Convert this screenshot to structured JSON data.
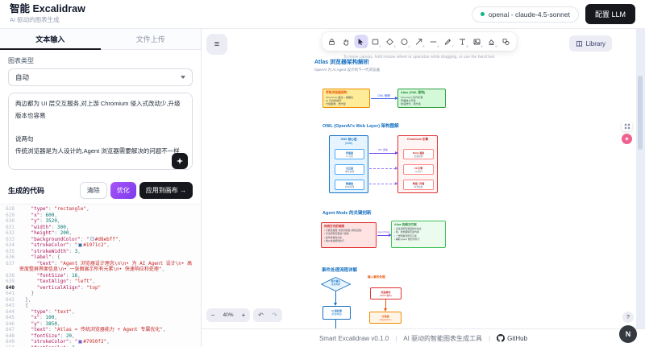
{
  "header": {
    "title": "智能 Excalidraw",
    "subtitle": "AI 驱动的图表生成",
    "model_badge": "openai - claude-4.5-sonnet",
    "config_button": "配置 LLM"
  },
  "sidebar": {
    "tabs": {
      "text_input": "文本输入",
      "file_upload": "文件上传"
    },
    "chart_type_label": "图表类型",
    "chart_type_value": "自动",
    "input_text": "两边都为 UI 层交互服务,对上游 Chromium 侵入式改动少,升级版本也容易\n\n说两句\n传统浏览器是为人设计的,Agent 浏览器需要解决的问题不一样\n\n人类靠各种交互,进行辅助认知,可以忍受逐步单击浏览\n\nAI 则不同,需要在一张图里看到所有元素,需要快速响应\n\n新的浏览器架构,很有必要",
    "generated_code_label": "生成的代码",
    "buttons": {
      "clear": "清除",
      "optimize": "优化",
      "apply": "应用到画布 →"
    }
  },
  "code": {
    "lines": [
      {
        "n": 640,
        "active": true
      },
      {
        "n": 0
      }
    ],
    "rows": [
      {
        "n": "628",
        "parts": [
          [
            "p",
            "    "
          ],
          [
            "k",
            "\"type\""
          ],
          [
            "p",
            ": "
          ],
          [
            "s",
            "\"rectangle\""
          ],
          [
            "p",
            ","
          ]
        ]
      },
      {
        "n": "629",
        "parts": [
          [
            "p",
            "    "
          ],
          [
            "k",
            "\"x\""
          ],
          [
            "p",
            ": "
          ],
          [
            "m",
            "600"
          ],
          [
            "p",
            ","
          ]
        ]
      },
      {
        "n": "630",
        "parts": [
          [
            "p",
            "    "
          ],
          [
            "k",
            "\"y\""
          ],
          [
            "p",
            ": "
          ],
          [
            "m",
            "3520"
          ],
          [
            "p",
            ","
          ]
        ]
      },
      {
        "n": "631",
        "parts": [
          [
            "p",
            "    "
          ],
          [
            "k",
            "\"width\""
          ],
          [
            "p",
            ": "
          ],
          [
            "m",
            "300"
          ],
          [
            "p",
            ","
          ]
        ]
      },
      {
        "n": "632",
        "parts": [
          [
            "p",
            "    "
          ],
          [
            "k",
            "\"height\""
          ],
          [
            "p",
            ": "
          ],
          [
            "m",
            "200"
          ],
          [
            "p",
            ","
          ]
        ]
      },
      {
        "n": "633",
        "parts": [
          [
            "p",
            "    "
          ],
          [
            "k",
            "\"backgroundColor\""
          ],
          [
            "p",
            ": "
          ],
          [
            "s",
            "\""
          ],
          [
            "w",
            "#d8ebff"
          ],
          [
            "s",
            "#d8ebff\""
          ],
          [
            "p",
            ","
          ]
        ]
      },
      {
        "n": "634",
        "parts": [
          [
            "p",
            "    "
          ],
          [
            "k",
            "\"strokeColor\""
          ],
          [
            "p",
            ": "
          ],
          [
            "s",
            "\""
          ],
          [
            "w",
            "#1971c2"
          ],
          [
            "s",
            "#1971c2\""
          ],
          [
            "p",
            ","
          ]
        ]
      },
      {
        "n": "635",
        "parts": [
          [
            "p",
            "    "
          ],
          [
            "k",
            "\"strokeWidth\""
          ],
          [
            "p",
            ": "
          ],
          [
            "m",
            "3"
          ],
          [
            "p",
            ","
          ]
        ]
      },
      {
        "n": "636",
        "parts": [
          [
            "p",
            "    "
          ],
          [
            "k",
            "\"label\""
          ],
          [
            "p",
            ": {"
          ]
        ]
      },
      {
        "n": "637",
        "parts": [
          [
            "p",
            "      "
          ],
          [
            "k",
            "\"text\""
          ],
          [
            "p",
            ": "
          ],
          [
            "s",
            "\"Agent 浏览器设计理念\\n\\n• 为 AI Agent 设计\\n• 高密度整屏界面信息\\n• 一张图展示所有元素\\n• 快速响应和处理\""
          ],
          [
            "p",
            ","
          ]
        ]
      },
      {
        "n": "638",
        "parts": [
          [
            "p",
            "      "
          ],
          [
            "k",
            "\"fontSize\""
          ],
          [
            "p",
            ": "
          ],
          [
            "m",
            "16"
          ],
          [
            "p",
            ","
          ]
        ]
      },
      {
        "n": "639",
        "parts": [
          [
            "p",
            "      "
          ],
          [
            "k",
            "\"textAlign\""
          ],
          [
            "p",
            ": "
          ],
          [
            "s",
            "\"left\""
          ],
          [
            "p",
            ","
          ]
        ]
      },
      {
        "n": "640",
        "active": true,
        "parts": [
          [
            "p",
            "      "
          ],
          [
            "k",
            "\"verticalAlign\""
          ],
          [
            "p",
            ": "
          ],
          [
            "s",
            "\"top\""
          ]
        ]
      },
      {
        "n": "641",
        "parts": [
          [
            "p",
            "    }"
          ]
        ]
      },
      {
        "n": "642",
        "parts": [
          [
            "p",
            "  },"
          ]
        ]
      },
      {
        "n": "643",
        "parts": [
          [
            "p",
            "  {"
          ]
        ]
      },
      {
        "n": "644",
        "parts": [
          [
            "p",
            "    "
          ],
          [
            "k",
            "\"type\""
          ],
          [
            "p",
            ": "
          ],
          [
            "s",
            "\"text\""
          ],
          [
            "p",
            ","
          ]
        ]
      },
      {
        "n": "645",
        "parts": [
          [
            "p",
            "    "
          ],
          [
            "k",
            "\"x\""
          ],
          [
            "p",
            ": "
          ],
          [
            "m",
            "100"
          ],
          [
            "p",
            ","
          ]
        ]
      },
      {
        "n": "646",
        "parts": [
          [
            "p",
            "    "
          ],
          [
            "k",
            "\"y\""
          ],
          [
            "p",
            ": "
          ],
          [
            "m",
            "3850"
          ],
          [
            "p",
            ","
          ]
        ]
      },
      {
        "n": "647",
        "parts": [
          [
            "p",
            "    "
          ],
          [
            "k",
            "\"text\""
          ],
          [
            "p",
            ": "
          ],
          [
            "s",
            "\"Atlas = 传统浏览器能力 + Agent 专属优化\""
          ],
          [
            "p",
            ","
          ]
        ]
      },
      {
        "n": "648",
        "parts": [
          [
            "p",
            "    "
          ],
          [
            "k",
            "\"fontSize\""
          ],
          [
            "p",
            ": "
          ],
          [
            "m",
            "20"
          ],
          [
            "p",
            ","
          ]
        ]
      },
      {
        "n": "649",
        "parts": [
          [
            "p",
            "    "
          ],
          [
            "k",
            "\"strokeColor\""
          ],
          [
            "p",
            ": "
          ],
          [
            "s",
            "\""
          ],
          [
            "w",
            "#7950f2"
          ],
          [
            "s",
            "#7950f2\""
          ],
          [
            "p",
            ","
          ]
        ]
      },
      {
        "n": "650",
        "parts": [
          [
            "p",
            "    "
          ],
          [
            "k",
            "\"fontFamily\""
          ],
          [
            "p",
            ": "
          ],
          [
            "m",
            "2"
          ]
        ]
      },
      {
        "n": "651",
        "parts": [
          [
            "p",
            "  }"
          ]
        ]
      },
      {
        "n": "652",
        "parts": [
          [
            "p",
            "]"
          ]
        ]
      }
    ]
  },
  "canvas": {
    "hint": "To move canvas, hold mouse wheel or spacebar while dragging, or use the hand tool",
    "library_label": "Library",
    "zoom_value": "40%",
    "zoom_minus": "−",
    "zoom_plus": "+",
    "undo_glyph": "↶",
    "redo_glyph": "↷",
    "help_glyph": "?",
    "tools": [
      {
        "name": "lock",
        "key": ""
      },
      {
        "name": "hand",
        "key": ""
      },
      {
        "name": "selection",
        "key": "1",
        "active": true
      },
      {
        "name": "rectangle",
        "key": "2"
      },
      {
        "name": "diamond",
        "key": "3"
      },
      {
        "name": "ellipse",
        "key": "4"
      },
      {
        "name": "arrow",
        "key": "5"
      },
      {
        "name": "line",
        "key": "6"
      },
      {
        "name": "draw",
        "key": "7"
      },
      {
        "name": "text",
        "key": "8"
      },
      {
        "name": "image",
        "key": "9"
      },
      {
        "name": "eraser",
        "key": "0"
      },
      {
        "name": "more-tools",
        "key": ""
      }
    ]
  },
  "diagram": {
    "s1": {
      "title": "Atlas 浏览器架构解析",
      "subtitle": "OpenAI 为 AI Agent 设计的下一代浏览器",
      "left_title": "传统浏览器架构",
      "left_lines": [
        "Chromium 魔改 + 强耦合",
        "UI 与内核绑定",
        "升级困难、迭代慢"
      ],
      "arrow_label": "OWL 解耦",
      "right_title": "Atlas (OWL 架构)",
      "right_lines": [
        "Chromium 仅作引擎",
        "界面独立开发",
        "快速迭代、易升级"
      ]
    },
    "s2": {
      "title": "OWL (OpenAI's Web Layer) 架构图解",
      "left_title1": "OWL 核心层",
      "left_title2": "(Swift)",
      "left_boxes": [
        {
          "t": "界面层",
          "s": "UI 渲染"
        },
        {
          "t": "交互层",
          "s": "事件处理"
        },
        {
          "t": "数据层",
          "s": "状态管理"
        }
      ],
      "right_title": "Chromium 引擎",
      "right_boxes": [
        {
          "t": "Blink 渲染",
          "s": "页面绘制"
        },
        {
          "t": "V8 引擎",
          "s": "JS 执行"
        },
        {
          "t": "网络 / 存储",
          "s": "资源加载"
        }
      ],
      "arrow_label": "IPC 通信"
    },
    "s3": {
      "title": "Agent Mode 的关键创新",
      "left_title": "传统方式的局限",
      "left_bullets": [
        "• 只能靠截图, 视觉识别慢 (容易出错)",
        "• 无法获取页面语义结构",
        "• 操作靠模拟点击",
        "• 难以快速规划执行"
      ],
      "arrow_label": "Agent Mode",
      "right_title": "Atlas 的解决方案",
      "right_bullets": [
        "• 直接读取页面结构化信息",
        "• 快、准地理解页面内容",
        "• 一张图看到所有元素",
        "• 辅助 Agent 规划与执行"
      ]
    },
    "s4": {
      "title": "事件处理流程详解",
      "diamond_l1": "用户输入",
      "diamond_l2": "来源判断",
      "blue_l1": "UI 层处理",
      "blue_l2": "(原生响应)",
      "orange_label": "输入事件处理",
      "red_l1": "页面事件",
      "red_l2": "(DOM 事件)",
      "orange_l1": "分发器",
      "orange_l2": "(dispatcher)"
    }
  },
  "footer": {
    "version": "Smart Excalidraw v0.1.0",
    "sep": "|",
    "tagline": "AI 驱动的智能图表生成工具",
    "github": "GitHub"
  },
  "avatar": "N"
}
